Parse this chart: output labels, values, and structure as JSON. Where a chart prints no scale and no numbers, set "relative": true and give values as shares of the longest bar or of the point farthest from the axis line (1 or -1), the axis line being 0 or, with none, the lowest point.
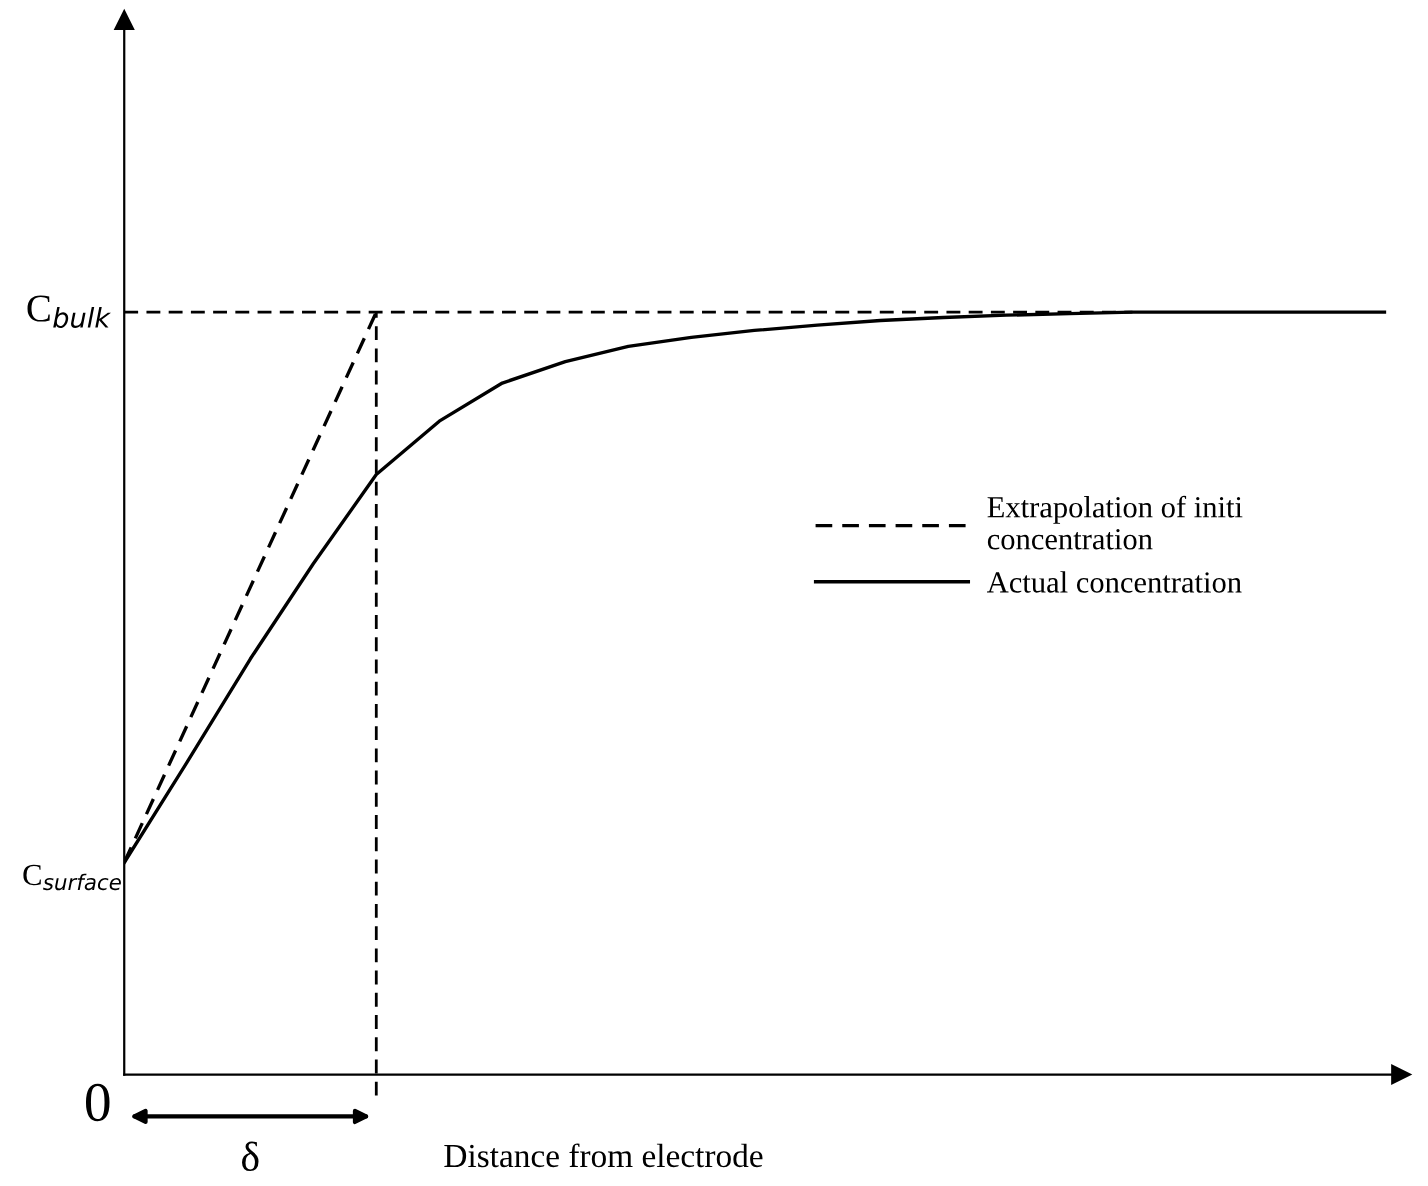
{
  "chart_data": {
    "type": "line",
    "relative": true,
    "xlabel": "Distance from electrode",
    "legend": "right",
    "grid": false,
    "marker": "none",
    "categories": [
      null,
      null,
      null,
      null,
      null,
      null,
      null,
      null,
      null,
      null,
      null,
      null,
      null,
      null,
      null,
      null,
      null,
      null,
      null,
      null,
      null
    ],
    "series": [
      {
        "name": "Extrapolation of initi\nconcentration",
        "color": "#000000",
        "line_style": "dashed",
        "values": [
          0.278,
          0.4585,
          0.639,
          0.8195,
          1,
          null,
          null,
          null,
          null,
          null,
          null,
          null,
          null,
          null,
          null,
          null,
          null,
          null,
          null,
          null,
          null
        ]
      },
      {
        "name": "Actual concentration",
        "color": "#000000",
        "line_style": "solid",
        "values": [
          0.278,
          0.41,
          0.545,
          0.67,
          0.787,
          0.857,
          0.907,
          0.935,
          0.955,
          0.967,
          0.976,
          0.983,
          0.989,
          0.993,
          0.996,
          0.998,
          1.0,
          1.0,
          1.0,
          1.0,
          1.0
        ]
      }
    ],
    "annotations": [
      "0",
      "C$_{surface}$",
      "δ",
      "C$_{bulk}$"
    ]
  }
}
